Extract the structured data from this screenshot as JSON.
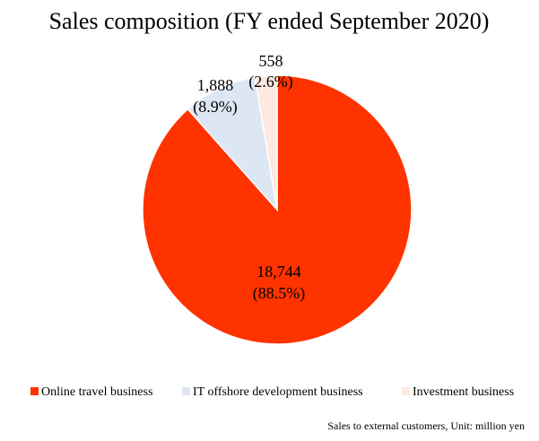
{
  "chart_data": {
    "type": "pie",
    "title": "Sales composition (FY ended September 2020)",
    "categories": [
      "Online travel business",
      "IT offshore development business",
      "Investment business"
    ],
    "values": [
      18744,
      1888,
      558
    ],
    "value_labels": [
      "18,744",
      "1,888",
      "558"
    ],
    "percent_labels": [
      "(88.5%)",
      "(8.9%)",
      "(2.6%)"
    ],
    "colors": [
      "#ff3300",
      "#dde6f3",
      "#fde9e0"
    ],
    "legend_position": "bottom",
    "start_angle": "12 o'clock",
    "direction": "clockwise",
    "note": "Sales to external customers, Unit: million yen"
  }
}
